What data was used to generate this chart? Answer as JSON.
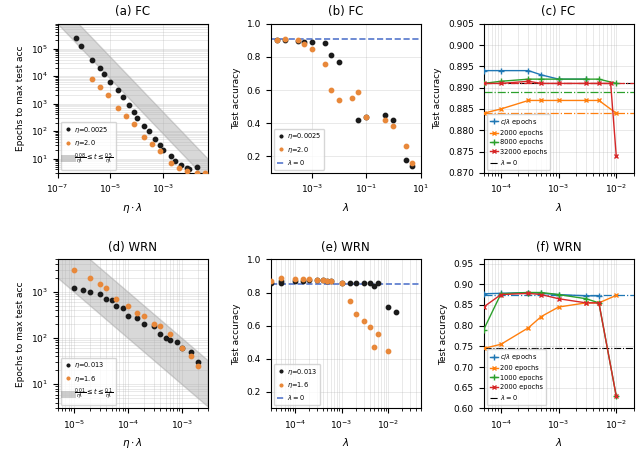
{
  "panel_a": {
    "title": "(a) FC",
    "xlabel": "$\\eta \\cdot \\lambda$",
    "ylabel": "Epochs to max test acc",
    "xlim": [
      1e-07,
      0.05
    ],
    "ylim": [
      3,
      800000.0
    ],
    "band_lower_factor": 0.08,
    "band_upper_factor": 0.5,
    "scatter_black_x": [
      5e-07,
      8e-07,
      2e-06,
      4e-06,
      6e-06,
      1e-05,
      2e-05,
      3e-05,
      5e-05,
      8e-05,
      0.0001,
      0.0002,
      0.0003,
      0.0005,
      0.0008,
      0.001,
      0.002,
      0.003,
      0.005,
      0.008,
      0.01,
      0.02
    ],
    "scatter_black_y": [
      250000.0,
      120000.0,
      40000.0,
      20000.0,
      12000.0,
      6000.0,
      3000.0,
      1800.0,
      900.0,
      500.0,
      300.0,
      150.0,
      100.0,
      50.0,
      30.0,
      20.0,
      12.0,
      8,
      6,
      4.5,
      4,
      5
    ],
    "scatter_orange_x": [
      2e-06,
      4e-06,
      8e-06,
      2e-05,
      4e-05,
      8e-05,
      0.0002,
      0.0004,
      0.0008,
      0.002,
      0.004,
      0.008,
      0.02,
      0.04
    ],
    "scatter_orange_y": [
      8000.0,
      4000.0,
      2000.0,
      700.0,
      350.0,
      180.0,
      60.0,
      35.0,
      18.0,
      7,
      4.5,
      3.5,
      3,
      3
    ],
    "legend_eta1": "$\\eta$=0.0025",
    "legend_eta2": "$\\eta$=2.0",
    "legend_band": "$\\frac{0.08}{\\eta\\lambda} \\leq t \\leq \\frac{0.5}{\\eta\\lambda}$"
  },
  "panel_b": {
    "title": "(b) FC",
    "xlabel": "$\\lambda$",
    "ylabel": "Test accuracy",
    "xlim": [
      3e-05,
      10
    ],
    "ylim": [
      0.1,
      1.0
    ],
    "hline_y": 0.905,
    "scatter_black_x": [
      5e-05,
      0.0001,
      0.0003,
      0.0005,
      0.001,
      0.003,
      0.005,
      0.01,
      0.05,
      0.1,
      0.5,
      1,
      3,
      5
    ],
    "scatter_black_y": [
      0.9,
      0.9,
      0.895,
      0.89,
      0.89,
      0.885,
      0.81,
      0.77,
      0.42,
      0.44,
      0.45,
      0.42,
      0.18,
      0.14
    ],
    "scatter_orange_x": [
      5e-05,
      0.0001,
      0.0003,
      0.0005,
      0.001,
      0.003,
      0.005,
      0.01,
      0.03,
      0.05,
      0.1,
      0.5,
      1,
      3,
      5
    ],
    "scatter_orange_y": [
      0.9,
      0.905,
      0.9,
      0.88,
      0.85,
      0.76,
      0.6,
      0.54,
      0.55,
      0.59,
      0.44,
      0.42,
      0.38,
      0.26,
      0.16
    ],
    "legend_eta1": "$\\eta$=0.0025",
    "legend_eta2": "$\\eta$=2.0",
    "legend_hline": "$\\lambda=0$"
  },
  "panel_c": {
    "title": "(c) FC",
    "xlabel": "$\\lambda$",
    "ylabel": "Test accuracy",
    "xlim": [
      5e-05,
      0.02
    ],
    "ylim": [
      0.87,
      0.905
    ],
    "line_clambda_x": [
      5e-05,
      0.0001,
      0.0003,
      0.0005,
      0.001,
      0.003
    ],
    "line_clambda_y": [
      0.894,
      0.894,
      0.894,
      0.893,
      0.892,
      0.892
    ],
    "line_2000_x": [
      5e-05,
      0.0001,
      0.0003,
      0.0005,
      0.001,
      0.003,
      0.005,
      0.01
    ],
    "line_2000_y": [
      0.884,
      0.885,
      0.887,
      0.887,
      0.887,
      0.887,
      0.887,
      0.884
    ],
    "line_8000_x": [
      5e-05,
      0.0001,
      0.0003,
      0.0005,
      0.001,
      0.003,
      0.005,
      0.01
    ],
    "line_8000_y": [
      0.891,
      0.8915,
      0.892,
      0.892,
      0.892,
      0.892,
      0.892,
      0.891
    ],
    "line_32000_x": [
      5e-05,
      0.0001,
      0.0003,
      0.0005,
      0.001,
      0.003,
      0.005,
      0.008,
      0.01
    ],
    "line_32000_y": [
      0.891,
      0.891,
      0.8915,
      0.891,
      0.891,
      0.891,
      0.891,
      0.891,
      0.874
    ],
    "hline_2000": 0.884,
    "hline_8000": 0.889,
    "hline_32000": 0.891,
    "hline_black": 0.891,
    "colors": {
      "clambda": "#1f77b4",
      "2000": "#ff7f0e",
      "8000": "#2ca02c",
      "32000": "#d62728"
    }
  },
  "panel_d": {
    "title": "(d) WRN",
    "xlabel": "$\\eta \\cdot \\lambda$",
    "ylabel": "Epochs to max test acc",
    "xlim": [
      5e-06,
      0.003
    ],
    "ylim": [
      3,
      5000.0
    ],
    "band_lower_factor": 0.01,
    "band_upper_factor": 0.1,
    "scatter_black_x": [
      1e-05,
      2e-05,
      4e-05,
      6e-05,
      0.0001,
      0.0002,
      0.0004,
      0.0006,
      0.001,
      0.002
    ],
    "scatter_black_y": [
      1200,
      1000,
      700,
      500,
      300,
      200,
      120,
      90,
      60,
      30
    ],
    "scatter_black_x2": [
      1.5e-05,
      3e-05,
      5e-05,
      8e-05,
      0.00015,
      0.0003,
      0.0005,
      0.0008,
      0.0015
    ],
    "scatter_black_y2": [
      1100,
      900,
      650,
      450,
      270,
      180,
      100,
      80,
      50
    ],
    "scatter_orange_x": [
      1e-05,
      2e-05,
      4e-05,
      0.0001,
      0.0002,
      0.0004,
      0.001,
      0.002
    ],
    "scatter_orange_y": [
      3000,
      2000,
      1200,
      500,
      300,
      180,
      60,
      25
    ],
    "scatter_orange_x2": [
      3e-05,
      6e-05,
      0.00015,
      0.0003,
      0.0006,
      0.0015
    ],
    "scatter_orange_y2": [
      1500,
      700,
      350,
      200,
      120,
      40
    ],
    "legend_eta1": "$\\eta$=0.013",
    "legend_eta2": "$\\eta$=1.6",
    "legend_band": "$\\frac{0.01}{\\eta\\lambda} \\leq t \\leq \\frac{0.1}{\\eta\\lambda}$"
  },
  "panel_e": {
    "title": "(e) WRN",
    "xlabel": "$\\lambda$",
    "ylabel": "Test accuracy",
    "xlim": [
      3e-05,
      0.05
    ],
    "ylim": [
      0.1,
      1.0
    ],
    "hline_y": 0.852,
    "scatter_black_x": [
      5e-05,
      0.0001,
      0.0002,
      0.0004,
      0.0006,
      0.001,
      0.002,
      0.004,
      0.006,
      0.01
    ],
    "scatter_black_y": [
      0.86,
      0.87,
      0.875,
      0.875,
      0.87,
      0.855,
      0.855,
      0.855,
      0.855,
      0.71
    ],
    "scatter_black_x2": [
      1.5e-05,
      3e-05,
      5e-05,
      0.00015,
      0.0003,
      0.0005,
      0.0015,
      0.003,
      0.005,
      0.015
    ],
    "scatter_black_y2": [
      0.86,
      0.86,
      0.87,
      0.87,
      0.875,
      0.87,
      0.855,
      0.855,
      0.84,
      0.68
    ],
    "scatter_orange_x": [
      5e-05,
      0.0001,
      0.0002,
      0.0004,
      0.0006,
      0.001,
      0.002,
      0.004,
      0.006,
      0.01
    ],
    "scatter_orange_y": [
      0.89,
      0.88,
      0.88,
      0.875,
      0.87,
      0.855,
      0.67,
      0.59,
      0.55,
      0.45
    ],
    "scatter_orange_x2": [
      1.5e-05,
      3e-05,
      0.00015,
      0.0003,
      0.0005,
      0.0015,
      0.003,
      0.005
    ],
    "scatter_orange_y2": [
      0.89,
      0.87,
      0.88,
      0.875,
      0.87,
      0.75,
      0.63,
      0.47
    ],
    "legend_eta1": "$\\eta$=0.013",
    "legend_eta2": "$\\eta$=1.6",
    "legend_hline": "$\\lambda=0$"
  },
  "panel_f": {
    "title": "(f) WRN",
    "xlabel": "$\\lambda$",
    "ylabel": "Test accuracy",
    "xlim": [
      5e-05,
      0.02
    ],
    "ylim": [
      0.6,
      0.96
    ],
    "line_clambda_x": [
      5e-05,
      0.0001,
      0.0003,
      0.0005,
      0.001,
      0.003,
      0.005
    ],
    "line_clambda_y": [
      0.877,
      0.878,
      0.88,
      0.878,
      0.875,
      0.872,
      0.872
    ],
    "line_200_x": [
      5e-05,
      0.0001,
      0.0003,
      0.0005,
      0.001,
      0.003,
      0.005,
      0.01
    ],
    "line_200_y": [
      0.745,
      0.755,
      0.795,
      0.822,
      0.845,
      0.855,
      0.855,
      0.873
    ],
    "line_1000_x": [
      5e-05,
      0.0001,
      0.0003,
      0.0005,
      0.001,
      0.003,
      0.005,
      0.01
    ],
    "line_1000_y": [
      0.79,
      0.877,
      0.88,
      0.88,
      0.875,
      0.865,
      0.855,
      0.63
    ],
    "line_2000_x": [
      5e-05,
      0.0001,
      0.0003,
      0.0005,
      0.001,
      0.003,
      0.005,
      0.01
    ],
    "line_2000_y": [
      0.845,
      0.875,
      0.878,
      0.875,
      0.865,
      0.855,
      0.855,
      0.63
    ],
    "hline_clambda": 0.875,
    "hline_200": 0.745,
    "hline_1000": 0.745,
    "hline_2000": 0.745,
    "colors": {
      "clambda": "#1f77b4",
      "200": "#ff7f0e",
      "1000": "#2ca02c",
      "2000": "#d62728"
    }
  }
}
